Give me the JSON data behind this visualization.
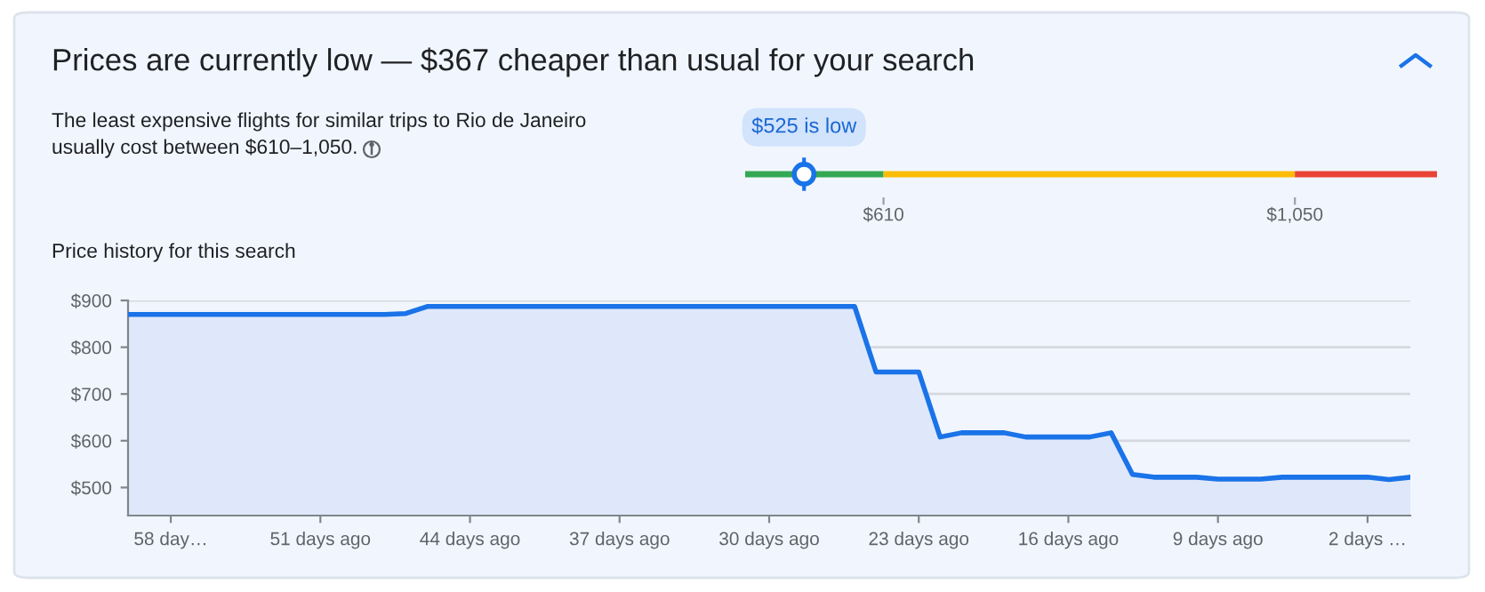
{
  "chart_data": [
    {
      "type": "other",
      "title": "Prices are currently low — $367 cheaper than usual for your search",
      "subtitle": "The least expensive flights for similar trips to Rio de Janeiro\nusually cost between $610–1,050."
    },
    {
      "type": "bar",
      "orientation": "horizontal",
      "xlim": [
        462,
        1202
      ],
      "xticks": [
        {
          "value": 610,
          "label": "$610"
        },
        {
          "value": 1050,
          "label": "$1,050"
        }
      ],
      "categories": [
        null
      ],
      "series": [
        {
          "color": "#34a853",
          "base": [
            462
          ],
          "values": [
            148
          ]
        },
        {
          "color": "#fbbc04",
          "base": [
            610
          ],
          "values": [
            440
          ]
        },
        {
          "color": "#ea4335",
          "base": [
            1050
          ],
          "values": [
            152
          ]
        }
      ],
      "ref_lines": [
        {
          "axis": "x",
          "value": 525,
          "label": "$525 is low",
          "color": "#1a73e8"
        }
      ]
    },
    {
      "type": "area",
      "title": "Price history for this search",
      "xlim": [
        60,
        0
      ],
      "ylim": [
        440,
        900
      ],
      "xticks": [
        {
          "value": 58,
          "label": "58 day…"
        },
        {
          "value": 51,
          "label": "51 days ago"
        },
        {
          "value": 44,
          "label": "44 days ago"
        },
        {
          "value": 37,
          "label": "37 days ago"
        },
        {
          "value": 30,
          "label": "30 days ago"
        },
        {
          "value": 23,
          "label": "23 days ago"
        },
        {
          "value": 16,
          "label": "16 days ago"
        },
        {
          "value": 9,
          "label": "9 days ago"
        },
        {
          "value": 2,
          "label": "2 days …"
        }
      ],
      "yticks": [
        {
          "value": 500,
          "label": "$500"
        },
        {
          "value": 600,
          "label": "$600"
        },
        {
          "value": 700,
          "label": "$700"
        },
        {
          "value": 800,
          "label": "$800"
        },
        {
          "value": 900,
          "label": "$900"
        }
      ],
      "grid": "y",
      "series": [
        {
          "color": "#1a73e8",
          "x": [
            60,
            48,
            47,
            46,
            26,
            25,
            23,
            22,
            21,
            19,
            18,
            15,
            14,
            13,
            12,
            10,
            9,
            7,
            6,
            2,
            1,
            0
          ],
          "values": [
            870,
            870,
            872,
            887,
            887,
            747,
            747,
            608,
            617,
            617,
            608,
            608,
            617,
            528,
            522,
            522,
            518,
            518,
            522,
            522,
            517,
            522
          ]
        }
      ]
    }
  ]
}
